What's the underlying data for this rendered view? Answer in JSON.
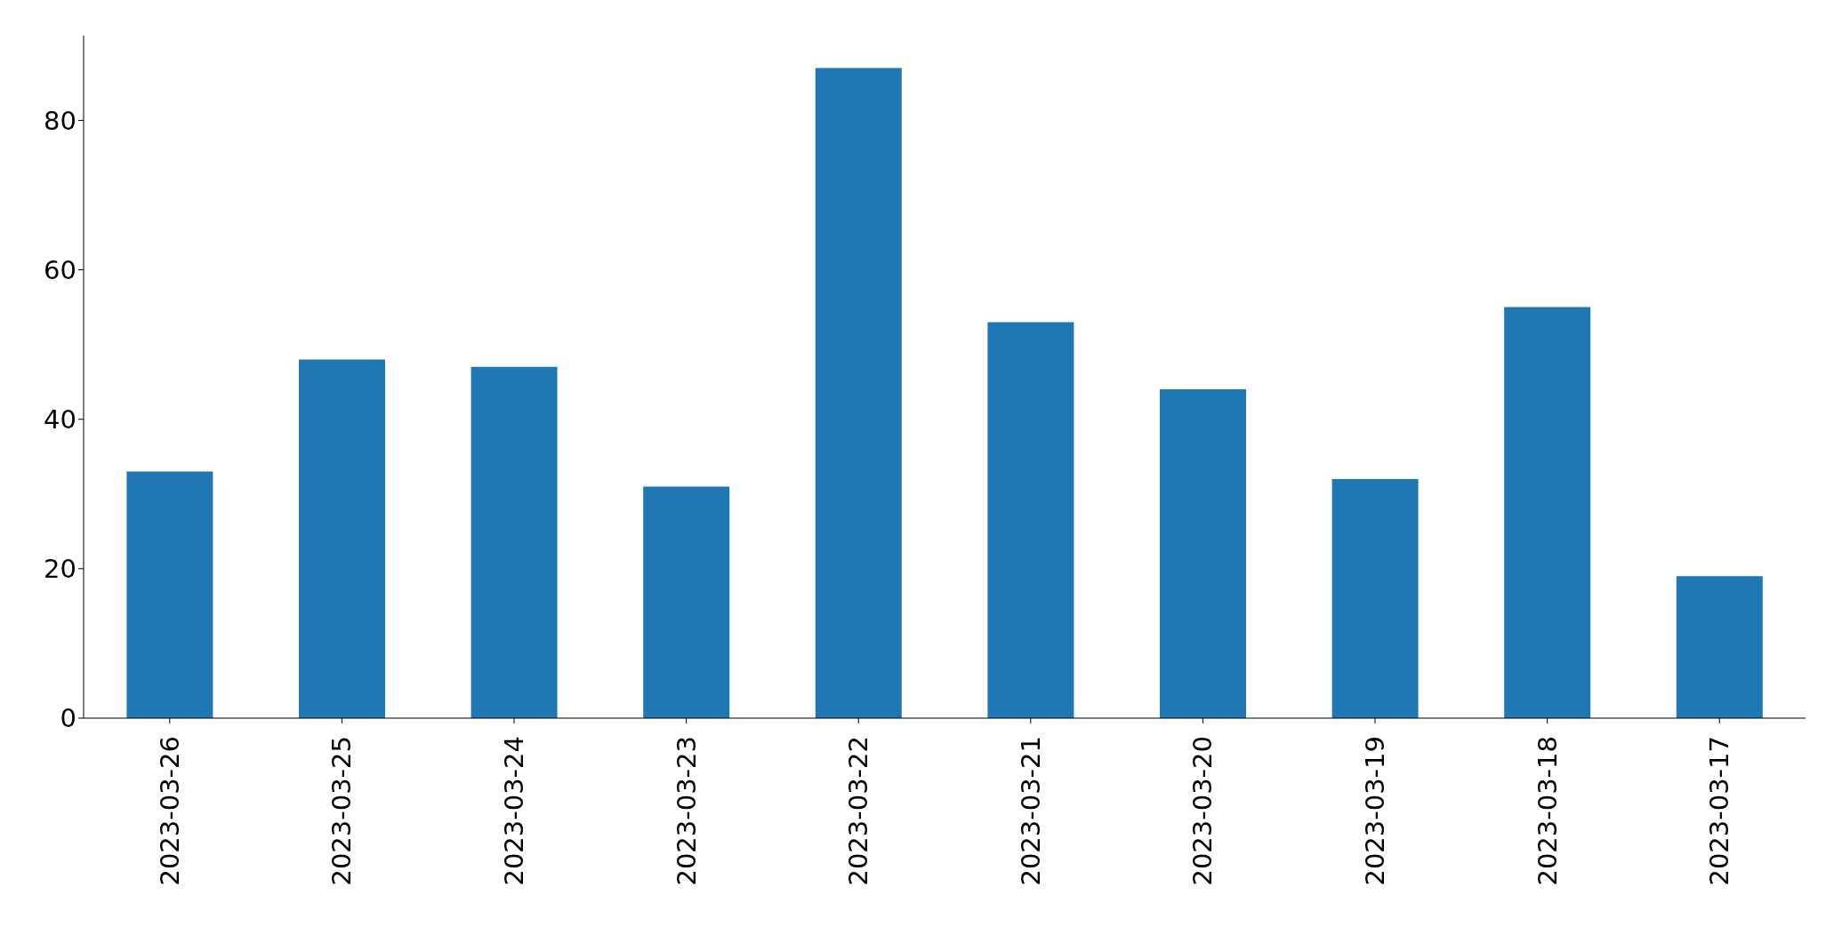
{
  "chart_data": {
    "type": "bar",
    "categories": [
      "2023-03-26",
      "2023-03-25",
      "2023-03-24",
      "2023-03-23",
      "2023-03-22",
      "2023-03-21",
      "2023-03-20",
      "2023-03-19",
      "2023-03-18",
      "2023-03-17"
    ],
    "values": [
      33,
      48,
      47,
      31,
      87,
      53,
      44,
      32,
      55,
      19
    ],
    "color": "#1f77b4",
    "ylim": [
      0,
      91.35
    ],
    "yticks": [
      0,
      20,
      40,
      60,
      80
    ],
    "grid": false,
    "legend": false
  }
}
